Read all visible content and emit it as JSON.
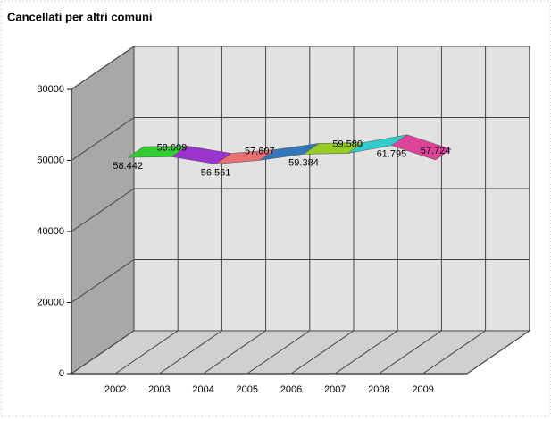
{
  "chart_data": {
    "type": "line3d",
    "title": "Cancellati per altri comuni",
    "categories": [
      "2002",
      "2003",
      "2004",
      "2005",
      "2006",
      "2007",
      "2008",
      "2009"
    ],
    "values": [
      58442,
      58609,
      56561,
      57607,
      59384,
      59580,
      61795,
      57724
    ],
    "value_labels": [
      "58.442",
      "58.609",
      "56.561",
      "57.607",
      "59.384",
      "59.580",
      "61.795",
      "57.724"
    ],
    "segment_colors": [
      "#33cc33",
      "#9933cc",
      "#e87070",
      "#3377bb",
      "#99cc22",
      "#33cccc",
      "#dd4499"
    ],
    "ylim": [
      0,
      80000
    ],
    "yticks": [
      0,
      20000,
      40000,
      60000,
      80000
    ],
    "grid": true
  }
}
